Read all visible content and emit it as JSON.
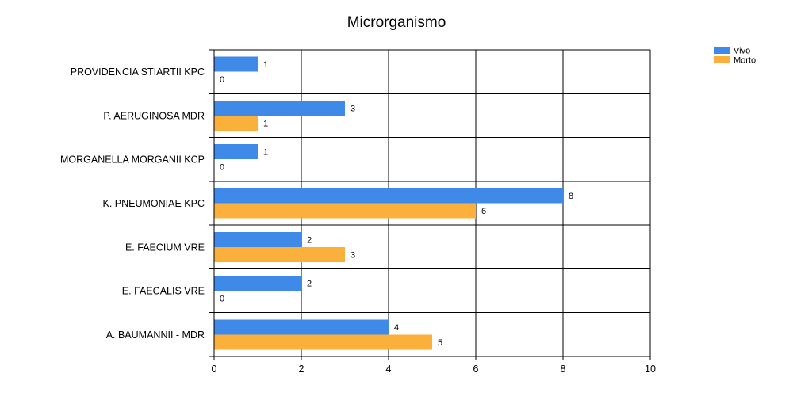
{
  "chart_data": {
    "type": "bar",
    "orientation": "horizontal",
    "title": "Microrganismo",
    "categories": [
      "PROVIDENCIA STIARTII KPC",
      "P. AERUGINOSA MDR",
      "MORGANELLA MORGANII KCP",
      "K. PNEUMONIAE KPC",
      "E. FAECIUM VRE",
      "E. FAECALIS VRE",
      "A. BAUMANNII - MDR"
    ],
    "series": [
      {
        "name": "Vivo",
        "color": "#3f8ae8",
        "values": [
          1,
          3,
          1,
          8,
          2,
          2,
          4
        ]
      },
      {
        "name": "Morto",
        "color": "#fbb03b",
        "values": [
          0,
          1,
          0,
          6,
          3,
          0,
          5
        ]
      }
    ],
    "xlim": [
      0,
      10
    ],
    "x_ticks": [
      0,
      2,
      4,
      6,
      8,
      10
    ],
    "grid": true,
    "legend_position": "top-right"
  }
}
